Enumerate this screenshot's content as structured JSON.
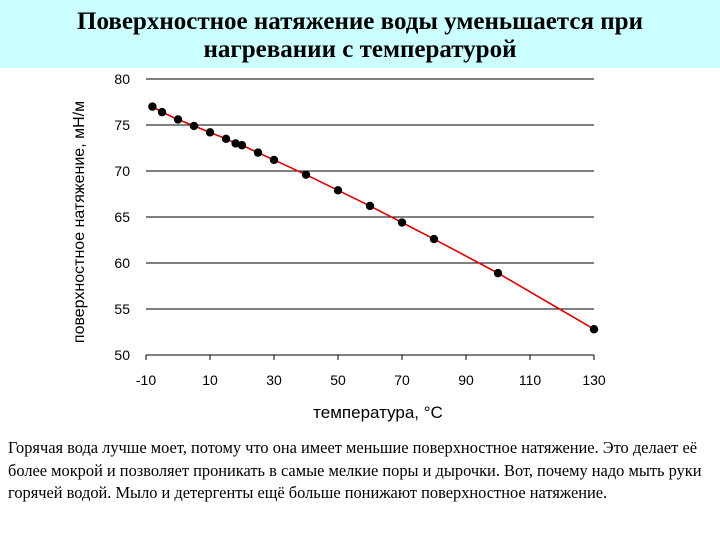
{
  "title": "Поверхностное натяжение воды уменьшается при\nнагревании с температурой",
  "caption": "Горячая вода лучше моет, потому что она имеет меньшие поверхностное натяжение. Это делает её более мокрой и позволяет проникать в самые мелкие поры и дырочки. Вот, почему надо мыть руки горячей водой. Мыло и детергенты ещё больше понижают поверхностное натяжение.",
  "colors": {
    "title_background": "#ccffff",
    "line": "#dd0000",
    "points": "#000000"
  },
  "chart_data": {
    "type": "line",
    "xlabel": "температура, °C",
    "ylabel": "поверхностное натяжение, мН/м",
    "xlim": [
      -10,
      130
    ],
    "ylim": [
      50,
      80
    ],
    "xticks": [
      "-10",
      "10",
      "30",
      "50",
      "70",
      "90",
      "110",
      "130"
    ],
    "yticks": [
      "80",
      "75",
      "70",
      "65",
      "60",
      "55",
      "50"
    ],
    "grid": "horizontal",
    "series": [
      {
        "x": [
          -8,
          -5,
          0,
          5,
          10,
          15,
          18,
          20,
          25,
          30,
          40,
          50,
          60,
          70,
          80,
          100,
          130
        ],
        "y": [
          77.0,
          76.4,
          75.6,
          74.9,
          74.2,
          73.5,
          73.0,
          72.8,
          72.0,
          71.2,
          69.6,
          67.9,
          66.2,
          64.4,
          62.6,
          58.9,
          52.8
        ]
      }
    ]
  }
}
